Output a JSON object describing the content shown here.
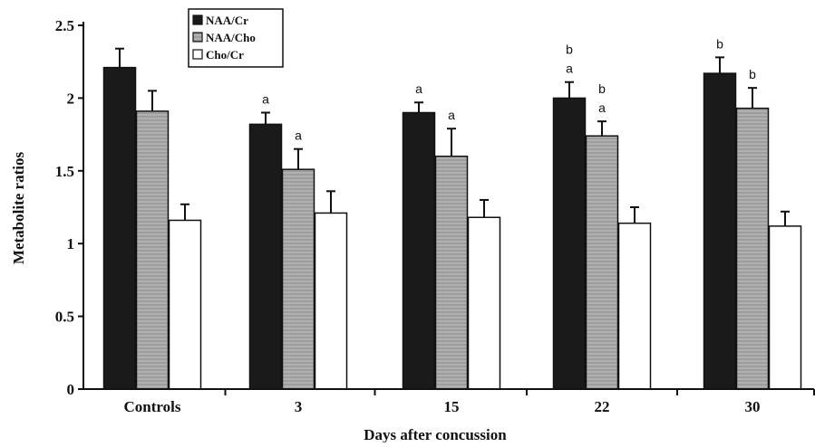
{
  "chart_data": {
    "type": "bar",
    "xlabel": "Days after concussion",
    "ylabel": "Metabolite ratios",
    "ylim": [
      0,
      2.5
    ],
    "yticks": [
      "0",
      "0.5",
      "1",
      "1.5",
      "2",
      "2.5"
    ],
    "ytick_values": [
      0,
      0.5,
      1,
      1.5,
      2,
      2.5
    ],
    "categories": [
      "Controls",
      "3",
      "15",
      "22",
      "30"
    ],
    "legend_position": "top-left",
    "grid": false,
    "series": [
      {
        "name": "NAA/Cr",
        "color": "#1a1a1a",
        "values": [
          2.21,
          1.82,
          1.9,
          2.0,
          2.17
        ],
        "errors": [
          0.13,
          0.08,
          0.07,
          0.11,
          0.11
        ],
        "annotations": [
          "",
          "a",
          "a",
          "b\na",
          "b"
        ]
      },
      {
        "name": "NAA/Cho",
        "color": "#a8a8a8",
        "values": [
          1.91,
          1.51,
          1.6,
          1.74,
          1.93
        ],
        "errors": [
          0.14,
          0.14,
          0.19,
          0.1,
          0.14
        ],
        "annotations": [
          "",
          "a",
          "a",
          "b\na",
          "b"
        ]
      },
      {
        "name": "Cho/Cr",
        "color": "#ffffff",
        "values": [
          1.16,
          1.21,
          1.18,
          1.14,
          1.12
        ],
        "errors": [
          0.11,
          0.15,
          0.12,
          0.11,
          0.1
        ],
        "annotations": [
          "",
          "",
          "",
          "",
          ""
        ]
      }
    ]
  }
}
